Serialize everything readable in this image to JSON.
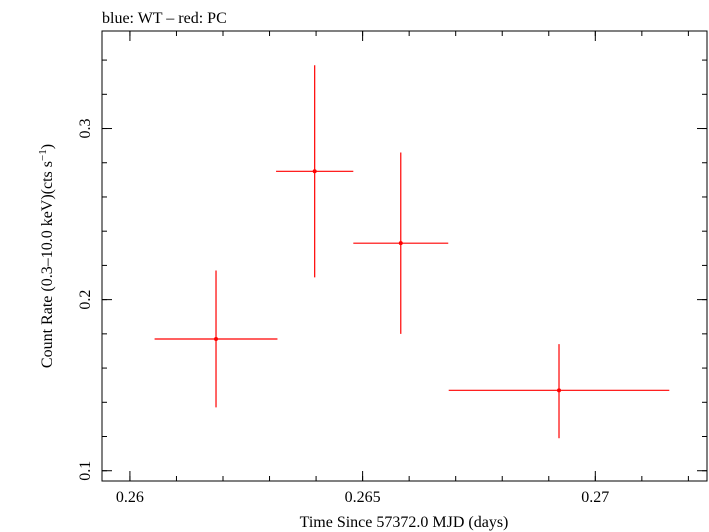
{
  "chart_data": {
    "type": "scatter",
    "title": "blue: WT – red: PC",
    "xlabel": "Time Since 57372.0 MJD (days)",
    "ylabel_main": "Count Rate (0.3–10.0 keV)(cts s",
    "ylabel_sup": "−1",
    "ylabel_close": ")",
    "xlim": [
      0.2594,
      0.2724
    ],
    "ylim": [
      0.094,
      0.357
    ],
    "x_ticks": [
      {
        "value": 0.26,
        "label": "0.26"
      },
      {
        "value": 0.265,
        "label": "0.265"
      },
      {
        "value": 0.27,
        "label": "0.27"
      }
    ],
    "x_minor_step": 0.001,
    "y_ticks": [
      {
        "value": 0.1,
        "label": "0.1"
      },
      {
        "value": 0.2,
        "label": "0.2"
      },
      {
        "value": 0.3,
        "label": "0.3"
      }
    ],
    "y_minor_step": 0.02,
    "series": [
      {
        "name": "PC",
        "color": "#ff0000",
        "points": [
          {
            "x": 0.26185,
            "y": 0.177,
            "xerr_lo": 0.00132,
            "xerr_hi": 0.00132,
            "yerr_lo": 0.04,
            "yerr_hi": 0.04
          },
          {
            "x": 0.26397,
            "y": 0.275,
            "xerr_lo": 0.00083,
            "xerr_hi": 0.00083,
            "yerr_lo": 0.062,
            "yerr_hi": 0.062
          },
          {
            "x": 0.26582,
            "y": 0.233,
            "xerr_lo": 0.00102,
            "xerr_hi": 0.00102,
            "yerr_lo": 0.053,
            "yerr_hi": 0.053
          },
          {
            "x": 0.26922,
            "y": 0.147,
            "xerr_lo": 0.00237,
            "xerr_hi": 0.00237,
            "yerr_lo": 0.028,
            "yerr_hi": 0.027
          }
        ]
      },
      {
        "name": "WT",
        "color": "#0000ff",
        "points": []
      }
    ]
  }
}
